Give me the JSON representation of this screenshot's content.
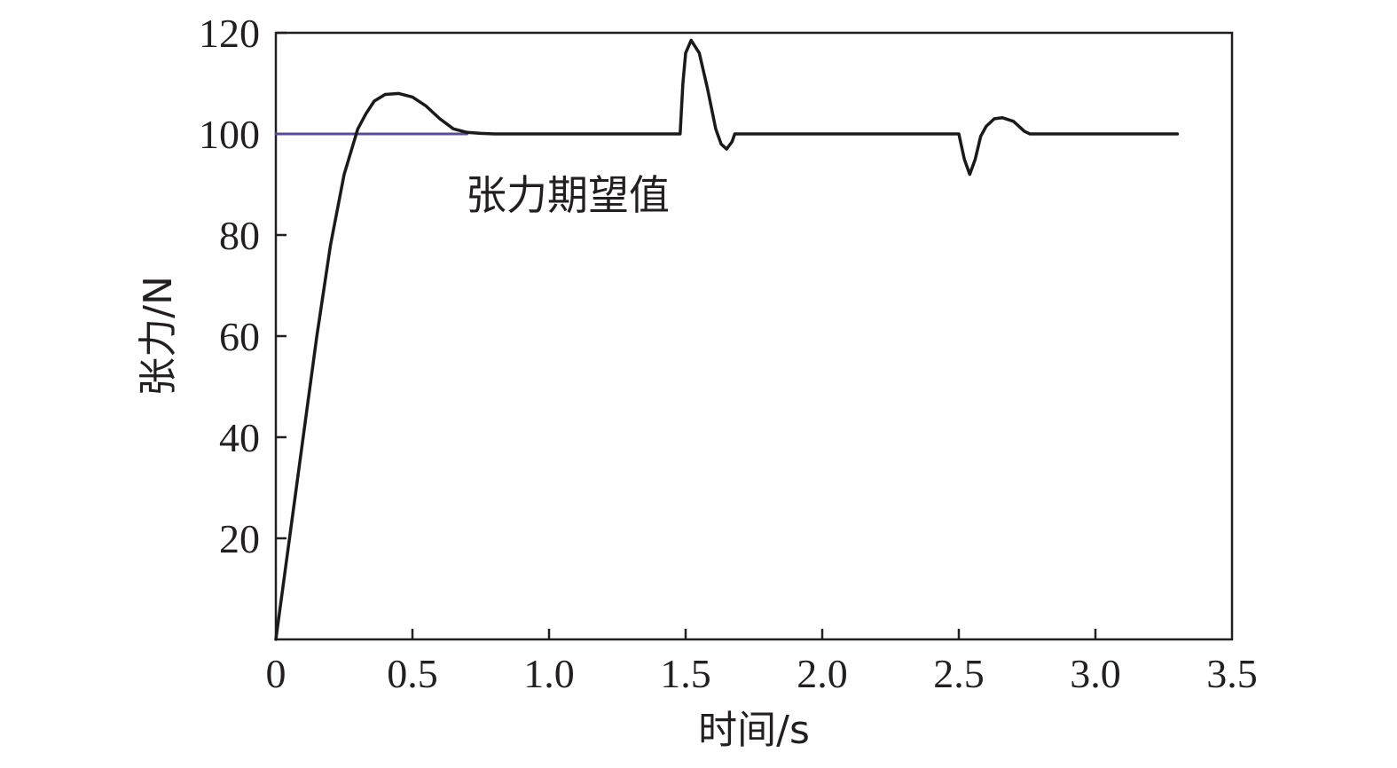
{
  "chart_data": {
    "type": "line",
    "xlabel": "时间/s",
    "ylabel": "张力/N",
    "xlim": [
      0,
      3.5
    ],
    "ylim": [
      0,
      120
    ],
    "grid": false,
    "x_ticks": [
      "0",
      "0.5",
      "1.0",
      "1.5",
      "2.0",
      "2.5",
      "3.0",
      "3.5"
    ],
    "y_ticks": [
      "20",
      "40",
      "60",
      "80",
      "100",
      "120"
    ],
    "annotations": [
      {
        "text": "张力期望值",
        "refers_to": "reference"
      }
    ],
    "colors": {
      "response": "#1a1a1a",
      "reference": "#5b4b9a",
      "axes": "#231f20"
    },
    "series": [
      {
        "id": "response",
        "x": [
          0,
          0.05,
          0.1,
          0.15,
          0.2,
          0.25,
          0.3,
          0.33,
          0.36,
          0.4,
          0.45,
          0.5,
          0.55,
          0.6,
          0.65,
          0.7,
          0.75,
          0.8,
          1.0,
          1.2,
          1.4,
          1.48,
          1.49,
          1.5,
          1.52,
          1.55,
          1.58,
          1.61,
          1.63,
          1.65,
          1.67,
          1.68,
          1.7,
          2.0,
          2.3,
          2.49,
          2.5,
          2.52,
          2.54,
          2.56,
          2.58,
          2.6,
          2.63,
          2.66,
          2.7,
          2.74,
          2.76,
          3.0,
          3.3
        ],
        "y": [
          0,
          20,
          40,
          60,
          78,
          92,
          101,
          104,
          106.5,
          107.8,
          108.0,
          107.3,
          105.5,
          103.0,
          101.0,
          100.3,
          100.1,
          100.0,
          100,
          100,
          100,
          100,
          110,
          116,
          118.5,
          116,
          109,
          101,
          98,
          97,
          98.5,
          100,
          100,
          100,
          100,
          100,
          100,
          95,
          92,
          95,
          99.5,
          101.5,
          103,
          103.2,
          102.5,
          100.5,
          100,
          100,
          100
        ]
      },
      {
        "id": "reference",
        "x": [
          0,
          0.7
        ],
        "y": [
          100,
          100
        ]
      }
    ]
  }
}
